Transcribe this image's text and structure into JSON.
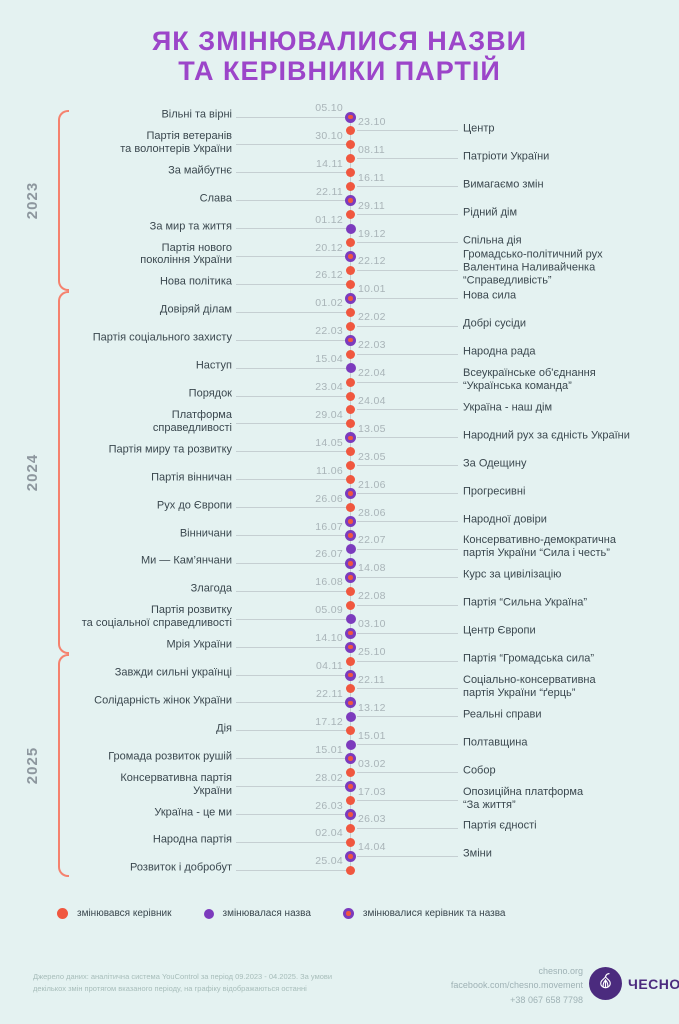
{
  "title": {
    "line1": "ЯК ЗМІНЮВАЛИСЯ НАЗВИ",
    "line2": "ТА КЕРІВНИКИ ПАРТІЙ"
  },
  "colors": {
    "background": "#E4F2F1",
    "title": "#9C45C9",
    "leader_dot": "#F0573F",
    "name_dot": "#7C3BBD",
    "bracket": "#F5826E",
    "year_label": "#8D979E",
    "label_text": "#3A474E",
    "date_text": "#A9B4B8",
    "line": "#C5CFD2",
    "logo": "#4B2B7E"
  },
  "sections": [
    {
      "year": "2023",
      "entries": [
        {
          "side": "L",
          "name": "Вільні та вірні",
          "date": "05.10",
          "change": "both"
        },
        {
          "side": "R",
          "name": "Центр",
          "date": "23.10",
          "change": "leader"
        },
        {
          "side": "L",
          "name": "Партія ветеранів\nта волонтерів України",
          "date": "30.10",
          "change": "leader"
        },
        {
          "side": "R",
          "name": "Патріоти України",
          "date": "08.11",
          "change": "leader"
        },
        {
          "side": "L",
          "name": "За майбутнє",
          "date": "14.11",
          "change": "leader"
        },
        {
          "side": "R",
          "name": "Вимагаємо змін",
          "date": "16.11",
          "change": "leader"
        },
        {
          "side": "L",
          "name": "Слава",
          "date": "22.11",
          "change": "both"
        },
        {
          "side": "R",
          "name": "Рідний дім",
          "date": "29.11",
          "change": "leader"
        },
        {
          "side": "L",
          "name": "За мир та життя",
          "date": "01.12",
          "change": "name"
        },
        {
          "side": "R",
          "name": "Спільна дія",
          "date": "19.12",
          "change": "leader"
        },
        {
          "side": "L",
          "name": "Партія нового\nпокоління України",
          "date": "20.12",
          "change": "both"
        },
        {
          "side": "R",
          "name": "Громадсько-політичний рух\nВалентина Наливайченка\n“Справедливість”",
          "date": "22.12",
          "change": "leader"
        },
        {
          "side": "L",
          "name": "Нова політика",
          "date": "26.12",
          "change": "leader"
        }
      ]
    },
    {
      "year": "2024",
      "entries": [
        {
          "side": "R",
          "name": "Нова сила",
          "date": "10.01",
          "change": "both"
        },
        {
          "side": "L",
          "name": "Довіряй ділам",
          "date": "01.02",
          "change": "leader"
        },
        {
          "side": "R",
          "name": "Добрі сусіди",
          "date": "22.02",
          "change": "leader"
        },
        {
          "side": "L",
          "name": "Партія соціального захисту",
          "date": "22.03",
          "change": "both"
        },
        {
          "side": "R",
          "name": "Народна рада",
          "date": "22.03",
          "change": "leader"
        },
        {
          "side": "L",
          "name": "Наступ",
          "date": "15.04",
          "change": "name"
        },
        {
          "side": "R",
          "name": "Всеукраїнське об'єднання\n“Українська команда”",
          "date": "22.04",
          "change": "leader"
        },
        {
          "side": "L",
          "name": "Порядок",
          "date": "23.04",
          "change": "leader"
        },
        {
          "side": "R",
          "name": "Україна - наш дім",
          "date": "24.04",
          "change": "leader"
        },
        {
          "side": "L",
          "name": "Платформа\nсправедливості",
          "date": "29.04",
          "change": "leader"
        },
        {
          "side": "R",
          "name": "Народний рух за єдність України",
          "date": "13.05",
          "change": "both"
        },
        {
          "side": "L",
          "name": "Партія миру та розвитку",
          "date": "14.05",
          "change": "leader"
        },
        {
          "side": "R",
          "name": "За Одещину",
          "date": "23.05",
          "change": "leader"
        },
        {
          "side": "L",
          "name": "Партія вінничан",
          "date": "11.06",
          "change": "leader"
        },
        {
          "side": "R",
          "name": "Прогресивні",
          "date": "21.06",
          "change": "both"
        },
        {
          "side": "L",
          "name": "Рух до Європи",
          "date": "26.06",
          "change": "leader"
        },
        {
          "side": "R",
          "name": "Народної довіри",
          "date": "28.06",
          "change": "both"
        },
        {
          "side": "L",
          "name": "Вінничани",
          "date": "16.07",
          "change": "both"
        },
        {
          "side": "R",
          "name": "Консервативно-демократична\nпартія України “Сила і честь”",
          "date": "22.07",
          "change": "name"
        },
        {
          "side": "L",
          "name": "Ми — Кам’янчани",
          "date": "26.07",
          "change": "both"
        },
        {
          "side": "R",
          "name": "Курс за цивілізацію",
          "date": "14.08",
          "change": "both"
        },
        {
          "side": "L",
          "name": "Злагода",
          "date": "16.08",
          "change": "leader"
        },
        {
          "side": "R",
          "name": "Партія “Сильна Україна”",
          "date": "22.08",
          "change": "leader"
        },
        {
          "side": "L",
          "name": "Партія розвитку\nта соціальної справедливості",
          "date": "05.09",
          "change": "name"
        },
        {
          "side": "R",
          "name": "Центр Європи",
          "date": "03.10",
          "change": "both"
        },
        {
          "side": "L",
          "name": "Мрія України",
          "date": "14.10",
          "change": "both"
        }
      ]
    },
    {
      "year": "2025",
      "entries": [
        {
          "side": "R",
          "name": "Партія “Громадська сила”",
          "date": "25.10",
          "change": "leader"
        },
        {
          "side": "L",
          "name": "Завжди сильні українці",
          "date": "04.11",
          "change": "both"
        },
        {
          "side": "R",
          "name": "Соціально-консервативна\nпартія України “ґерць”",
          "date": "22.11",
          "change": "leader"
        },
        {
          "side": "L",
          "name": "Солідарність жінок України",
          "date": "22.11",
          "change": "both"
        },
        {
          "side": "R",
          "name": "Реальні справи",
          "date": "13.12",
          "change": "name"
        },
        {
          "side": "L",
          "name": "Дія",
          "date": "17.12",
          "change": "leader"
        },
        {
          "side": "R",
          "name": "Полтавщина",
          "date": "15.01",
          "change": "name"
        },
        {
          "side": "L",
          "name": "Громада розвиток рушій",
          "date": "15.01",
          "change": "both"
        },
        {
          "side": "R",
          "name": "Собор",
          "date": "03.02",
          "change": "leader"
        },
        {
          "side": "L",
          "name": "Консервативна партія\nУкраїни",
          "date": "28.02",
          "change": "both"
        },
        {
          "side": "R",
          "name": "Опозиційна платформа\n“За життя”",
          "date": "17.03",
          "change": "leader"
        },
        {
          "side": "L",
          "name": "Україна - це ми",
          "date": "26.03",
          "change": "both"
        },
        {
          "side": "R",
          "name": "Партія єдності",
          "date": "26.03",
          "change": "leader"
        },
        {
          "side": "L",
          "name": "Народна партія",
          "date": "02.04",
          "change": "leader"
        },
        {
          "side": "R",
          "name": "Зміни",
          "date": "14.04",
          "change": "both"
        },
        {
          "side": "L",
          "name": "Розвиток і добробут",
          "date": "25.04",
          "change": "leader"
        }
      ]
    }
  ],
  "legend": [
    {
      "change": "leader",
      "label": "змінювався керівник"
    },
    {
      "change": "name",
      "label": "змінювалася назва"
    },
    {
      "change": "both",
      "label": "змінювалися керівник та назва"
    }
  ],
  "footer": {
    "source_line1": "Джерело даних: аналітична система YouControl за період 09.2023 - 04.2025. За умови",
    "source_line2": "декількох змін протягом вказаного періоду, на графіку відображаються останні",
    "contacts": [
      "chesno.org",
      "facebook.com/chesno.movement",
      "+38 067 658 7798"
    ],
    "logo_text": "ЧЕСНО"
  }
}
